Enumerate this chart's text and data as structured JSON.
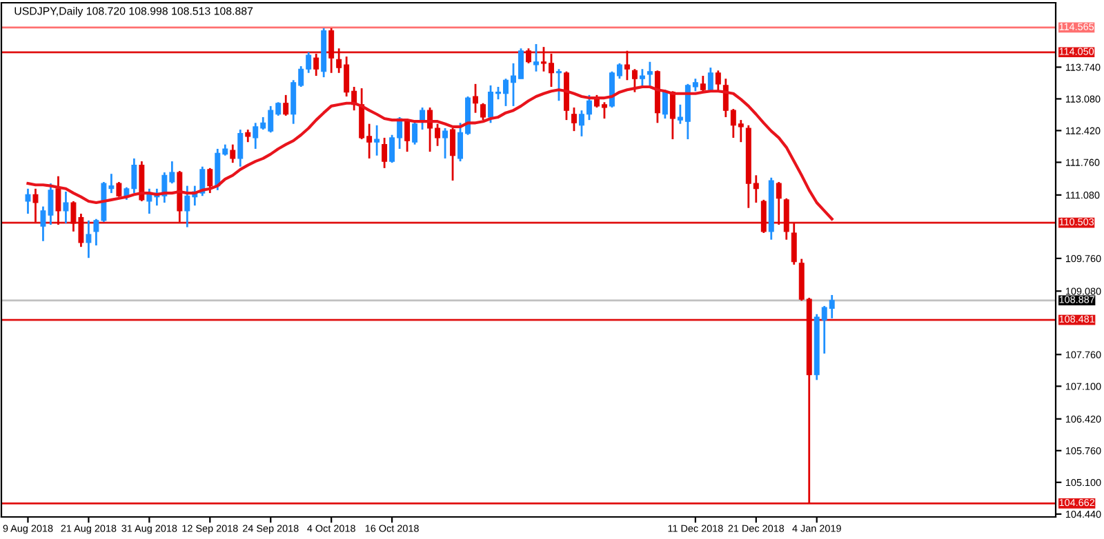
{
  "chart_data": {
    "type": "candlestick",
    "title": "USDJPY,Daily 108.720 108.998 108.513 108.887",
    "categories": [
      "9 Aug 2018",
      null,
      null,
      null,
      null,
      null,
      null,
      null,
      "21 Aug 2018",
      null,
      null,
      null,
      null,
      null,
      null,
      null,
      "31 Aug 2018",
      null,
      null,
      null,
      null,
      null,
      null,
      null,
      "12 Sep 2018",
      null,
      null,
      null,
      null,
      null,
      null,
      null,
      "24 Sep 2018",
      null,
      null,
      null,
      null,
      null,
      null,
      null,
      "4 Oct 2018",
      null,
      null,
      null,
      null,
      null,
      null,
      null,
      "16 Oct 2018",
      null,
      null,
      null,
      null,
      null,
      null,
      null,
      null,
      null,
      null,
      null,
      null,
      null,
      null,
      null,
      null,
      null,
      null,
      null,
      null,
      null,
      null,
      null,
      null,
      null,
      null,
      null,
      null,
      null,
      null,
      null,
      null,
      null,
      null,
      null,
      null,
      null,
      null,
      null,
      "11 Dec 2018",
      null,
      null,
      null,
      null,
      null,
      null,
      null,
      "21 Dec 2018",
      null,
      null,
      null,
      null,
      null,
      null,
      null,
      "4 Jan 2019",
      null,
      null
    ],
    "ohlc": [
      [
        110.95,
        111.21,
        110.69,
        111.09
      ],
      [
        111.09,
        111.21,
        110.52,
        110.92
      ],
      [
        110.43,
        110.84,
        110.12,
        110.75
      ],
      [
        110.66,
        111.32,
        110.46,
        111.18
      ],
      [
        111.21,
        111.47,
        110.46,
        110.75
      ],
      [
        110.75,
        111.15,
        110.49,
        110.92
      ],
      [
        110.92,
        110.95,
        110.32,
        110.49
      ],
      [
        110.61,
        110.69,
        110.0,
        110.09
      ],
      [
        110.09,
        110.55,
        109.77,
        110.26
      ],
      [
        110.32,
        110.58,
        110.03,
        110.55
      ],
      [
        110.55,
        111.35,
        110.52,
        111.32
      ],
      [
        111.21,
        111.52,
        111.12,
        111.27
      ],
      [
        111.32,
        111.35,
        111.04,
        111.06
      ],
      [
        111.06,
        111.24,
        110.98,
        111.21
      ],
      [
        111.21,
        111.84,
        111.12,
        111.7
      ],
      [
        111.7,
        111.78,
        110.95,
        110.98
      ],
      [
        110.95,
        111.21,
        110.69,
        111.12
      ],
      [
        111.04,
        111.21,
        110.86,
        111.12
      ],
      [
        111.06,
        111.55,
        110.92,
        111.49
      ],
      [
        111.35,
        111.78,
        111.32,
        111.55
      ],
      [
        111.55,
        111.58,
        110.52,
        110.75
      ],
      [
        110.75,
        111.27,
        110.41,
        111.06
      ],
      [
        111.04,
        111.27,
        110.86,
        111.15
      ],
      [
        111.12,
        111.67,
        111.06,
        111.61
      ],
      [
        111.61,
        111.64,
        111.12,
        111.27
      ],
      [
        111.27,
        112.04,
        111.18,
        111.95
      ],
      [
        111.93,
        112.13,
        111.9,
        112.04
      ],
      [
        112.01,
        112.13,
        111.75,
        111.84
      ],
      [
        111.84,
        112.44,
        111.67,
        112.36
      ],
      [
        112.38,
        112.44,
        112.18,
        112.3
      ],
      [
        112.27,
        112.58,
        112.04,
        112.5
      ],
      [
        112.47,
        112.7,
        112.44,
        112.58
      ],
      [
        112.41,
        112.93,
        112.38,
        112.84
      ],
      [
        112.76,
        113.01,
        112.73,
        112.99
      ],
      [
        112.99,
        113.16,
        112.73,
        112.76
      ],
      [
        112.76,
        113.47,
        112.56,
        113.42
      ],
      [
        113.36,
        113.76,
        113.33,
        113.7
      ],
      [
        113.7,
        114.05,
        113.62,
        113.99
      ],
      [
        113.93,
        114.02,
        113.56,
        113.7
      ],
      [
        113.65,
        114.55,
        113.53,
        114.5
      ],
      [
        114.5,
        114.55,
        113.62,
        113.93
      ],
      [
        113.9,
        114.13,
        113.62,
        113.73
      ],
      [
        113.79,
        113.96,
        113.13,
        113.22
      ],
      [
        113.24,
        113.33,
        112.84,
        112.96
      ],
      [
        112.96,
        113.3,
        112.24,
        112.27
      ],
      [
        112.3,
        112.56,
        111.84,
        112.18
      ],
      [
        112.18,
        112.53,
        111.9,
        112.24
      ],
      [
        112.13,
        112.27,
        111.64,
        111.78
      ],
      [
        111.78,
        112.33,
        111.75,
        112.27
      ],
      [
        112.27,
        112.7,
        112.04,
        112.67
      ],
      [
        112.64,
        112.67,
        111.98,
        112.21
      ],
      [
        112.18,
        112.64,
        112.13,
        112.56
      ],
      [
        112.61,
        112.9,
        112.44,
        112.84
      ],
      [
        112.84,
        112.9,
        111.98,
        112.47
      ],
      [
        112.47,
        112.56,
        112.1,
        112.27
      ],
      [
        112.27,
        112.47,
        111.84,
        112.41
      ],
      [
        112.44,
        112.47,
        111.38,
        111.9
      ],
      [
        111.84,
        112.58,
        111.78,
        112.38
      ],
      [
        112.36,
        113.13,
        112.33,
        113.1
      ],
      [
        113.13,
        113.39,
        112.79,
        112.99
      ],
      [
        112.96,
        112.99,
        112.64,
        112.7
      ],
      [
        112.7,
        113.36,
        112.58,
        113.22
      ],
      [
        113.19,
        113.33,
        113.07,
        113.22
      ],
      [
        113.19,
        113.5,
        112.93,
        113.47
      ],
      [
        113.42,
        113.82,
        112.93,
        113.56
      ],
      [
        113.5,
        114.13,
        113.5,
        114.08
      ],
      [
        114.08,
        114.13,
        113.82,
        113.85
      ],
      [
        113.79,
        114.22,
        113.65,
        113.85
      ],
      [
        113.85,
        114.16,
        113.65,
        113.82
      ],
      [
        113.82,
        114.02,
        113.33,
        113.62
      ],
      [
        113.62,
        113.7,
        113.04,
        113.65
      ],
      [
        113.62,
        113.65,
        112.64,
        112.84
      ],
      [
        112.76,
        112.9,
        112.41,
        112.58
      ],
      [
        112.53,
        112.84,
        112.3,
        112.76
      ],
      [
        112.76,
        113.16,
        112.64,
        113.04
      ],
      [
        113.07,
        113.16,
        112.9,
        112.93
      ],
      [
        112.96,
        113.01,
        112.67,
        112.9
      ],
      [
        112.93,
        113.65,
        112.9,
        113.62
      ],
      [
        113.56,
        113.82,
        113.5,
        113.79
      ],
      [
        113.79,
        114.08,
        113.47,
        113.7
      ],
      [
        113.67,
        113.7,
        113.22,
        113.5
      ],
      [
        113.5,
        113.7,
        113.33,
        113.56
      ],
      [
        113.59,
        113.85,
        113.36,
        113.65
      ],
      [
        113.65,
        113.67,
        112.58,
        112.79
      ],
      [
        112.76,
        113.27,
        112.67,
        113.22
      ],
      [
        113.22,
        113.24,
        112.24,
        112.67
      ],
      [
        112.64,
        112.96,
        112.56,
        112.7
      ],
      [
        112.61,
        113.39,
        112.24,
        113.36
      ],
      [
        113.33,
        113.5,
        113.24,
        113.42
      ],
      [
        113.39,
        113.56,
        113.22,
        113.27
      ],
      [
        113.27,
        113.73,
        113.22,
        113.62
      ],
      [
        113.62,
        113.67,
        113.24,
        113.39
      ],
      [
        113.36,
        113.5,
        112.7,
        112.84
      ],
      [
        112.84,
        112.87,
        112.27,
        112.53
      ],
      [
        112.56,
        112.64,
        112.18,
        112.5
      ],
      [
        112.47,
        112.53,
        110.81,
        111.32
      ],
      [
        111.32,
        111.49,
        110.92,
        111.21
      ],
      [
        110.95,
        110.98,
        110.29,
        110.32
      ],
      [
        110.32,
        111.44,
        110.15,
        111.38
      ],
      [
        111.32,
        111.35,
        110.46,
        111.01
      ],
      [
        110.98,
        111.01,
        110.15,
        110.32
      ],
      [
        110.29,
        110.49,
        109.63,
        109.69
      ],
      [
        109.66,
        109.75,
        108.88,
        108.91
      ],
      [
        108.91,
        108.94,
        104.66,
        107.34
      ],
      [
        107.34,
        108.6,
        107.23,
        108.54
      ],
      [
        108.48,
        108.77,
        107.78,
        108.74
      ],
      [
        108.72,
        108.998,
        108.513,
        108.887
      ]
    ],
    "colors": [
      "#1e90ff",
      "#e00000",
      "#1e90ff",
      "#1e90ff",
      "#e00000",
      "#1e90ff",
      "#e00000",
      "#e00000",
      "#1e90ff",
      "#1e90ff",
      "#1e90ff",
      "#1e90ff",
      "#e00000",
      "#1e90ff",
      "#1e90ff",
      "#e00000",
      "#1e90ff",
      "#1e90ff",
      "#1e90ff",
      "#1e90ff",
      "#e00000",
      "#1e90ff",
      "#1e90ff",
      "#1e90ff",
      "#e00000",
      "#1e90ff",
      "#1e90ff",
      "#e00000",
      "#1e90ff",
      "#e00000",
      "#1e90ff",
      "#1e90ff",
      "#1e90ff",
      "#1e90ff",
      "#e00000",
      "#1e90ff",
      "#1e90ff",
      "#1e90ff",
      "#e00000",
      "#1e90ff",
      "#e00000",
      "#e00000",
      "#e00000",
      "#e00000",
      "#e00000",
      "#e00000",
      "#1e90ff",
      "#e00000",
      "#1e90ff",
      "#1e90ff",
      "#e00000",
      "#1e90ff",
      "#1e90ff",
      "#e00000",
      "#e00000",
      "#1e90ff",
      "#e00000",
      "#1e90ff",
      "#1e90ff",
      "#e00000",
      "#e00000",
      "#1e90ff",
      "#1e90ff",
      "#1e90ff",
      "#1e90ff",
      "#1e90ff",
      "#e00000",
      "#1e90ff",
      "#e00000",
      "#e00000",
      "#1e90ff",
      "#e00000",
      "#e00000",
      "#1e90ff",
      "#1e90ff",
      "#e00000",
      "#e00000",
      "#1e90ff",
      "#1e90ff",
      "#e00000",
      "#e00000",
      "#1e90ff",
      "#1e90ff",
      "#e00000",
      "#1e90ff",
      "#e00000",
      "#1e90ff",
      "#1e90ff",
      "#1e90ff",
      "#e00000",
      "#1e90ff",
      "#e00000",
      "#e00000",
      "#e00000",
      "#e00000",
      "#e00000",
      "#e00000",
      "#e00000",
      "#1e90ff",
      "#e00000",
      "#e00000",
      "#e00000",
      "#e00000",
      "#e00000",
      "#1e90ff",
      "#1e90ff",
      "#1e90ff"
    ],
    "series": [
      {
        "type": "line",
        "color": "#e8141c",
        "values": [
          111.32,
          111.29,
          111.29,
          111.27,
          111.24,
          111.21,
          111.12,
          111.04,
          110.95,
          110.92,
          110.95,
          110.98,
          111.01,
          111.04,
          111.09,
          111.12,
          111.12,
          111.09,
          111.12,
          111.12,
          111.15,
          111.12,
          111.12,
          111.18,
          111.21,
          111.27,
          111.41,
          111.49,
          111.61,
          111.7,
          111.78,
          111.84,
          111.93,
          112.04,
          112.13,
          112.21,
          112.33,
          112.47,
          112.64,
          112.79,
          112.93,
          112.96,
          112.99,
          112.99,
          112.93,
          112.84,
          112.76,
          112.67,
          112.64,
          112.64,
          112.64,
          112.61,
          112.61,
          112.61,
          112.61,
          112.56,
          112.5,
          112.5,
          112.58,
          112.58,
          112.61,
          112.67,
          112.7,
          112.79,
          112.84,
          112.93,
          113.04,
          113.13,
          113.19,
          113.24,
          113.27,
          113.24,
          113.19,
          113.13,
          113.1,
          113.1,
          113.1,
          113.13,
          113.22,
          113.27,
          113.3,
          113.33,
          113.33,
          113.27,
          113.24,
          113.19,
          113.19,
          113.19,
          113.19,
          113.22,
          113.24,
          113.24,
          113.22,
          113.19,
          113.07,
          112.93,
          112.76,
          112.58,
          112.41,
          112.27,
          112.07,
          111.78,
          111.49,
          111.18,
          110.92,
          110.75,
          110.58
        ]
      }
    ],
    "ylim": [
      104.38,
      115.08
    ],
    "yticks": [
      {
        "value": 104.44,
        "label": "104.440"
      },
      {
        "value": 105.1,
        "label": "105.100"
      },
      {
        "value": 105.76,
        "label": "105.760"
      },
      {
        "value": 106.42,
        "label": "106.420"
      },
      {
        "value": 107.1,
        "label": "107.100"
      },
      {
        "value": 107.76,
        "label": "107.760"
      },
      {
        "value": 109.08,
        "label": "109.080"
      },
      {
        "value": 109.76,
        "label": "109.760"
      },
      {
        "value": 111.08,
        "label": "111.080"
      },
      {
        "value": 111.76,
        "label": "111.760"
      },
      {
        "value": 112.42,
        "label": "112.420"
      },
      {
        "value": 113.08,
        "label": "113.080"
      },
      {
        "value": 113.74,
        "label": "113.740"
      }
    ],
    "ref_lines": [
      {
        "axis": "y",
        "value": 114.565,
        "label": "114.565",
        "color": "#ff7070"
      },
      {
        "axis": "y",
        "value": 114.05,
        "label": "114.050",
        "color": "#e01010"
      },
      {
        "axis": "y",
        "value": 110.503,
        "label": "110.503",
        "color": "#e01010"
      },
      {
        "axis": "y",
        "value": 108.887,
        "label": "108.887",
        "color": "#c0c0c0"
      },
      {
        "axis": "y",
        "value": 108.481,
        "label": "108.481",
        "color": "#e01010"
      },
      {
        "axis": "y",
        "value": 104.662,
        "label": "104.662",
        "color": "#e01010"
      }
    ],
    "grid": false,
    "legend": false
  }
}
